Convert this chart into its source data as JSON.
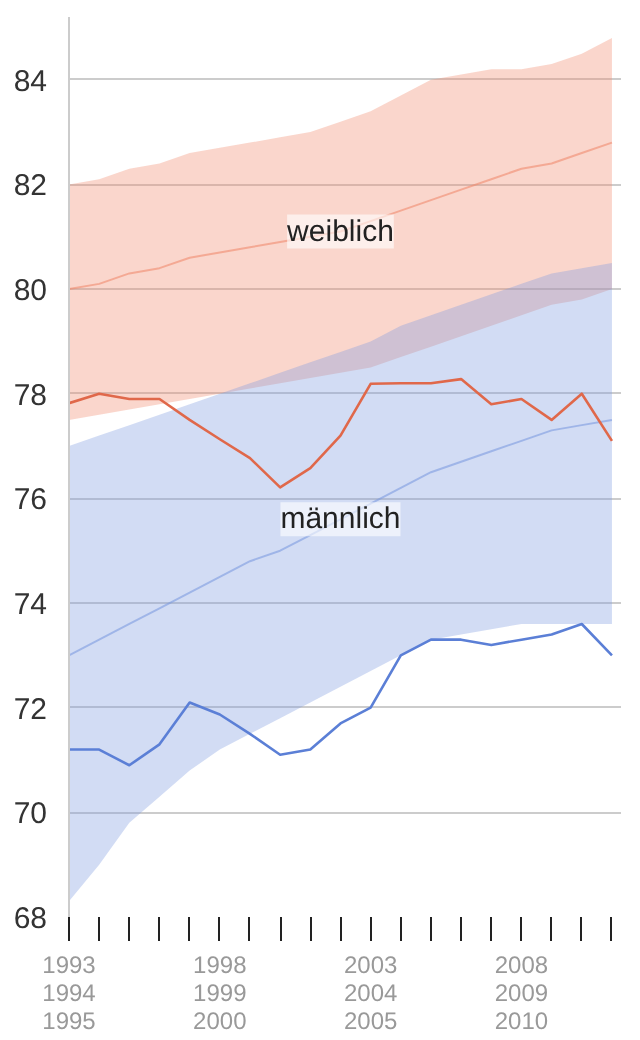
{
  "chart_data": {
    "type": "line",
    "categories": [
      "1993\n1994\n1995",
      null,
      null,
      null,
      null,
      "1998\n1999\n2000",
      null,
      null,
      null,
      null,
      "2003\n2004\n2005",
      null,
      null,
      null,
      null,
      "2008\n2009\n2010",
      null,
      null,
      null
    ],
    "ylim": [
      68,
      85.2
    ],
    "yticks": [
      68,
      70,
      72,
      74,
      76,
      78,
      80,
      82,
      84
    ],
    "grid": "y",
    "series": [
      {
        "name": "weiblich",
        "color": "#f08a6e",
        "values": [
          80.0,
          80.1,
          80.3,
          80.4,
          80.6,
          80.7,
          80.8,
          80.9,
          81.0,
          81.1,
          81.3,
          81.5,
          81.7,
          81.9,
          82.1,
          82.3,
          82.4,
          82.6,
          82.8
        ],
        "lower": [
          77.5,
          77.6,
          77.7,
          77.8,
          77.9,
          78.0,
          78.1,
          78.2,
          78.3,
          78.4,
          78.5,
          78.7,
          78.9,
          79.1,
          79.3,
          79.5,
          79.7,
          79.8,
          80.0
        ],
        "upper": [
          82.0,
          82.1,
          82.3,
          82.4,
          82.6,
          82.7,
          82.8,
          82.9,
          83.0,
          83.2,
          83.4,
          83.7,
          84.0,
          84.1,
          84.2,
          84.2,
          84.3,
          84.5,
          84.8
        ]
      },
      {
        "name": "männlich",
        "color": "#7d9be0",
        "values": [
          73.0,
          73.3,
          73.6,
          73.9,
          74.2,
          74.5,
          74.8,
          75.0,
          75.3,
          75.6,
          75.9,
          76.2,
          76.5,
          76.7,
          76.9,
          77.1,
          77.3,
          77.4,
          77.5
        ],
        "lower": [
          68.3,
          69.0,
          69.8,
          70.3,
          70.8,
          71.2,
          71.5,
          71.8,
          72.1,
          72.4,
          72.7,
          73.0,
          73.3,
          73.4,
          73.5,
          73.6,
          73.6,
          73.6,
          73.6
        ],
        "upper": [
          77.0,
          77.2,
          77.4,
          77.6,
          77.8,
          78.0,
          78.2,
          78.4,
          78.6,
          78.8,
          79.0,
          79.3,
          79.5,
          79.7,
          79.9,
          80.1,
          80.3,
          80.4,
          80.5
        ]
      },
      {
        "color": "#e0684a",
        "values": [
          77.82,
          78.0,
          77.9,
          77.9,
          77.5,
          77.13,
          76.77,
          76.21,
          76.58,
          77.2,
          78.19,
          78.2,
          78.2,
          78.28,
          77.8,
          77.9,
          77.5,
          78.0,
          77.1
        ]
      },
      {
        "color": "#5b7fd6",
        "values": [
          71.2,
          71.2,
          70.9,
          71.3,
          72.1,
          71.87,
          71.5,
          71.1,
          71.2,
          71.7,
          72.0,
          73.0,
          73.3,
          73.3,
          73.2,
          73.3,
          73.4,
          73.6,
          73.0
        ]
      }
    ]
  }
}
